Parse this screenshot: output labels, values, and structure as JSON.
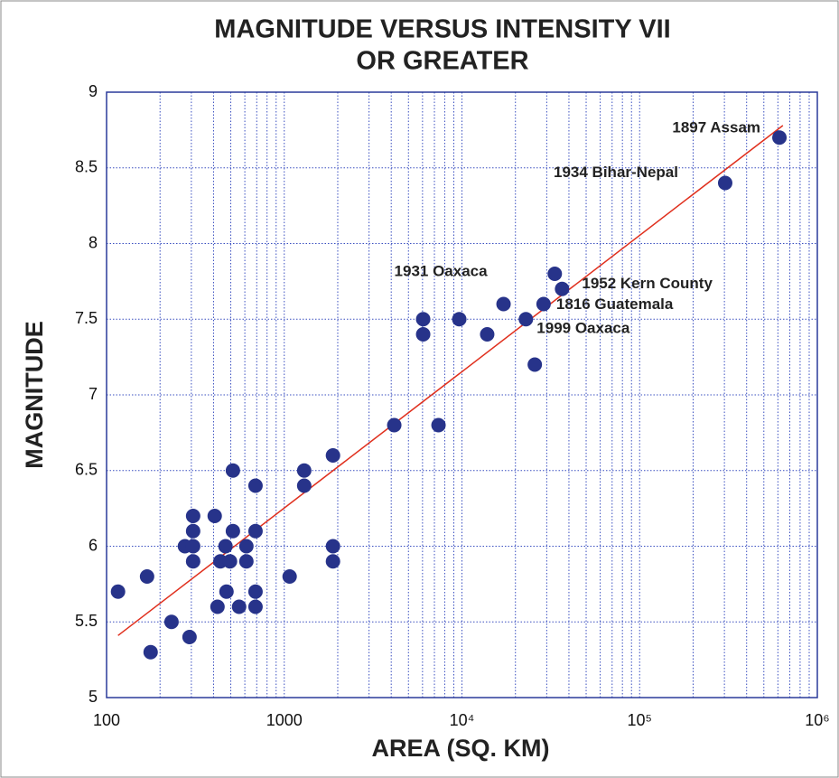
{
  "chart_data": {
    "type": "scatter",
    "title": [
      "MAGNITUDE VERSUS INTENSITY VII",
      "OR GREATER"
    ],
    "x_label": "AREA (SQ. KM)",
    "y_label": "MAGNITUDE",
    "xscale": "log",
    "grid": true,
    "xlim": [
      100,
      1000000
    ],
    "ylim": [
      5,
      9
    ],
    "xticks": [
      100,
      1000,
      {
        "value": 10000,
        "label": "10⁴"
      },
      {
        "value": 100000,
        "label": "10⁵"
      },
      {
        "value": 1000000,
        "label": "10⁶"
      }
    ],
    "yticks": [
      5,
      5.5,
      6,
      6.5,
      7,
      7.5,
      8,
      8.5,
      9
    ],
    "series": [
      {
        "color": "#27338a",
        "x": [
          116,
          169,
          177,
          232,
          276,
          293,
          307,
          307,
          307,
          307,
          406,
          421,
          437,
          467,
          473,
          495,
          514,
          514,
          557,
          612,
          612,
          689,
          689,
          689,
          689,
          1072,
          1295,
          1295,
          1880,
          1880,
          1880,
          4160,
          6050,
          6050,
          7380,
          9660,
          13870,
          17140,
          22900,
          25700,
          28800,
          33300,
          36600,
          303000,
          612000
        ],
        "values": [
          5.7,
          5.8,
          5.3,
          5.5,
          6.0,
          5.4,
          6.2,
          6.1,
          6.0,
          5.9,
          6.2,
          5.6,
          5.9,
          6.0,
          5.7,
          5.9,
          6.5,
          6.1,
          5.6,
          6.0,
          5.9,
          6.4,
          6.1,
          5.7,
          5.6,
          5.8,
          6.5,
          6.4,
          6.6,
          6.0,
          5.9,
          6.8,
          7.5,
          7.4,
          6.8,
          7.5,
          7.4,
          7.6,
          7.5,
          7.2,
          7.6,
          7.8,
          7.7,
          8.4,
          8.7
        ]
      }
    ],
    "fit_line": {
      "color": "#e0301e",
      "x": [
        116,
        640000
      ],
      "values": [
        5.41,
        8.78
      ]
    },
    "annotations": [
      {
        "text": "1897 Assam",
        "x": 612000,
        "y": 8.7
      },
      {
        "text": "1934 Bihar-Nepal",
        "x": 303000,
        "y": 8.4
      },
      {
        "text": "1931 Oaxaca",
        "x": 6050,
        "y": 7.5
      },
      {
        "text": "1952 Kern County",
        "x": 36600,
        "y": 7.7
      },
      {
        "text": "1816 Guatemala",
        "x": 28800,
        "y": 7.6
      },
      {
        "text": "1999 Oaxaca",
        "x": 22900,
        "y": 7.5
      }
    ]
  }
}
